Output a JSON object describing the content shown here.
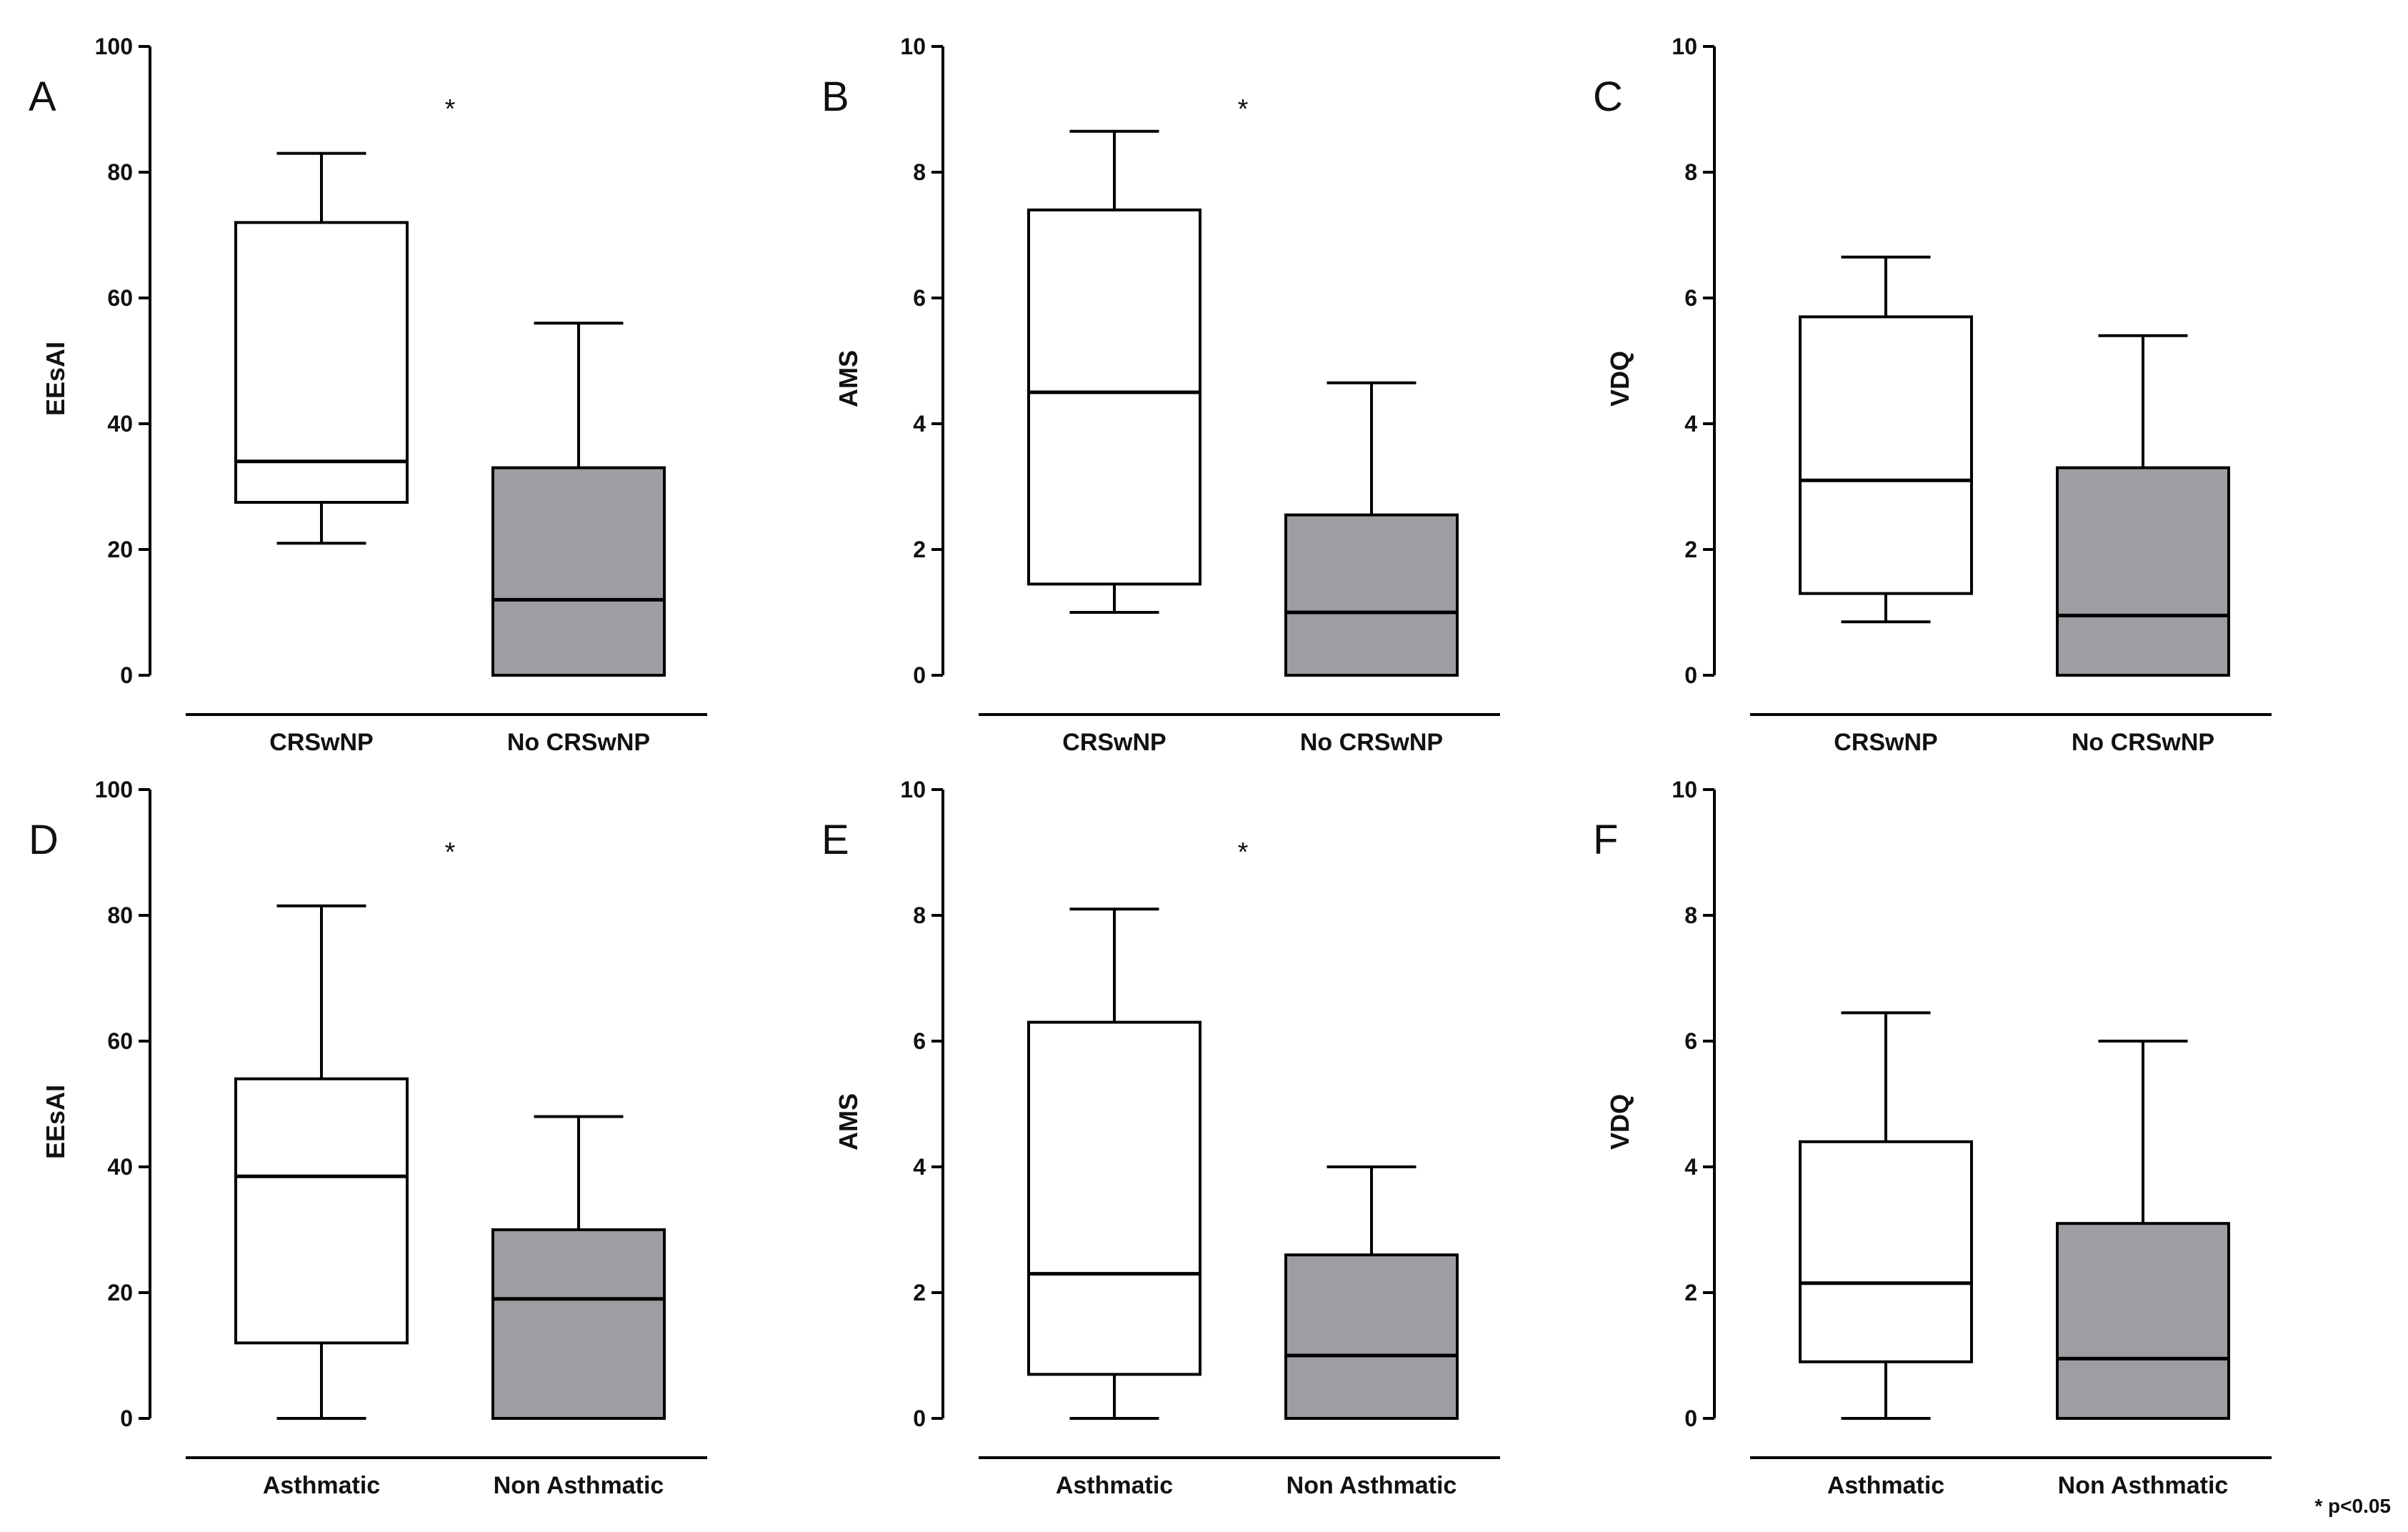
{
  "footnote": "* p<0.05",
  "colors": {
    "line": "#000000",
    "group1_fill": "#ffffff",
    "group2_fill": "#9d9ea2"
  },
  "chart_data": [
    {
      "type": "boxplot",
      "panel_label": "A",
      "ylabel": "EEsAI",
      "ylim": [
        0,
        100
      ],
      "yticks": [
        0,
        20,
        40,
        60,
        80,
        100
      ],
      "tick_labels": [
        "0",
        "20",
        "40",
        "60",
        "80",
        "100"
      ],
      "categories": [
        "CRSwNP",
        "No CRSwNP"
      ],
      "significance": "*",
      "boxes": [
        {
          "name": "CRSwNP",
          "min": 21,
          "q1": 27.5,
          "median": 34,
          "q3": 72,
          "max": 83
        },
        {
          "name": "No CRSwNP",
          "min": 0,
          "q1": 0,
          "median": 12,
          "q3": 33,
          "max": 56
        }
      ]
    },
    {
      "type": "boxplot",
      "panel_label": "B",
      "ylabel": "AMS",
      "ylim": [
        0,
        10
      ],
      "yticks": [
        0,
        2,
        4,
        6,
        8,
        10
      ],
      "tick_labels": [
        "0",
        "2",
        "4",
        "6",
        "8",
        "10"
      ],
      "categories": [
        "CRSwNP",
        "No CRSwNP"
      ],
      "significance": "*",
      "boxes": [
        {
          "name": "CRSwNP",
          "min": 1,
          "q1": 1.45,
          "median": 4.5,
          "q3": 7.4,
          "max": 8.65
        },
        {
          "name": "No CRSwNP",
          "min": 0,
          "q1": 0,
          "median": 1,
          "q3": 2.55,
          "max": 4.65
        }
      ]
    },
    {
      "type": "boxplot",
      "panel_label": "C",
      "ylabel": "VDQ",
      "ylim": [
        0,
        10
      ],
      "yticks": [
        0,
        2,
        4,
        6,
        8,
        10
      ],
      "tick_labels": [
        "0",
        "2",
        "4",
        "6",
        "8",
        "10"
      ],
      "categories": [
        "CRSwNP",
        "No CRSwNP"
      ],
      "significance": "",
      "boxes": [
        {
          "name": "CRSwNP",
          "min": 0.85,
          "q1": 1.3,
          "median": 3.1,
          "q3": 5.7,
          "max": 6.65
        },
        {
          "name": "No CRSwNP",
          "min": 0,
          "q1": 0,
          "median": 0.95,
          "q3": 3.3,
          "max": 5.4
        }
      ]
    },
    {
      "type": "boxplot",
      "panel_label": "D",
      "ylabel": "EEsAI",
      "ylim": [
        0,
        100
      ],
      "yticks": [
        0,
        20,
        40,
        60,
        80,
        100
      ],
      "tick_labels": [
        "0",
        "20",
        "40",
        "60",
        "80",
        "100"
      ],
      "categories": [
        "Asthmatic",
        "Non Asthmatic"
      ],
      "significance": "*",
      "boxes": [
        {
          "name": "Asthmatic",
          "min": 0,
          "q1": 12,
          "median": 38.5,
          "q3": 54,
          "max": 81.5
        },
        {
          "name": "Non Asthmatic",
          "min": 0,
          "q1": 0,
          "median": 19,
          "q3": 30,
          "max": 48
        }
      ]
    },
    {
      "type": "boxplot",
      "panel_label": "E",
      "ylabel": "AMS",
      "ylim": [
        0,
        10
      ],
      "yticks": [
        0,
        2,
        4,
        6,
        8,
        10
      ],
      "tick_labels": [
        "0",
        "2",
        "4",
        "6",
        "8",
        "10"
      ],
      "categories": [
        "Asthmatic",
        "Non Asthmatic"
      ],
      "significance": "*",
      "boxes": [
        {
          "name": "Asthmatic",
          "min": 0,
          "q1": 0.7,
          "median": 2.3,
          "q3": 6.3,
          "max": 8.1
        },
        {
          "name": "Non Asthmatic",
          "min": 0,
          "q1": 0,
          "median": 1,
          "q3": 2.6,
          "max": 4
        }
      ]
    },
    {
      "type": "boxplot",
      "panel_label": "F",
      "ylabel": "VDQ",
      "ylim": [
        0,
        10
      ],
      "yticks": [
        0,
        2,
        4,
        6,
        8,
        10
      ],
      "tick_labels": [
        "0",
        "2",
        "4",
        "6",
        "8",
        "10"
      ],
      "categories": [
        "Asthmatic",
        "Non Asthmatic"
      ],
      "significance": "",
      "boxes": [
        {
          "name": "Asthmatic",
          "min": 0,
          "q1": 0.9,
          "median": 2.15,
          "q3": 4.4,
          "max": 6.45
        },
        {
          "name": "Non Asthmatic",
          "min": 0,
          "q1": 0,
          "median": 0.95,
          "q3": 3.1,
          "max": 6
        }
      ]
    }
  ]
}
